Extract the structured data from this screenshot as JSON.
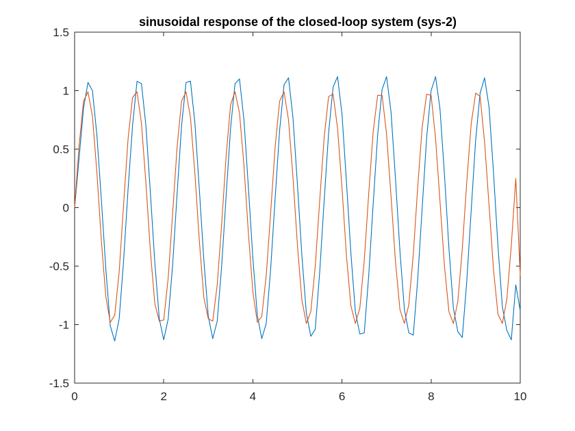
{
  "chart_data": {
    "type": "line",
    "title": "sinusoidal response of the closed-loop system (sys-2)",
    "xlabel": "",
    "ylabel": "",
    "xlim": [
      0,
      10
    ],
    "ylim": [
      -1.5,
      1.5
    ],
    "xticks": [
      0,
      2,
      4,
      6,
      8,
      10
    ],
    "yticks": [
      -1.5,
      -1,
      -0.5,
      0,
      0.5,
      1,
      1.5
    ],
    "xtick_labels": [
      "0",
      "2",
      "4",
      "6",
      "8",
      "10"
    ],
    "ytick_labels": [
      "-1.5",
      "-1",
      "-0.5",
      "0",
      "0.5",
      "1",
      "1.5"
    ],
    "grid": false,
    "legend": false,
    "series": [
      {
        "color": "#0072BD",
        "x": [
          0,
          0.1,
          0.2,
          0.3,
          0.4,
          0.5,
          0.6,
          0.7,
          0.8,
          0.9,
          1.0,
          1.1,
          1.2,
          1.3,
          1.4,
          1.5,
          1.6,
          1.7,
          1.8,
          1.9,
          2.0,
          2.1,
          2.2,
          2.3,
          2.4,
          2.5,
          2.6,
          2.7,
          2.8,
          2.9,
          3.0,
          3.1,
          3.2,
          3.3,
          3.4,
          3.5,
          3.6,
          3.7,
          3.8,
          3.9,
          4.0,
          4.1,
          4.2,
          4.3,
          4.4,
          4.5,
          4.6,
          4.7,
          4.8,
          4.9,
          5.0,
          5.1,
          5.2,
          5.3,
          5.4,
          5.5,
          5.6,
          5.7,
          5.8,
          5.9,
          6.0,
          6.1,
          6.2,
          6.3,
          6.4,
          6.5,
          6.6,
          6.7,
          6.8,
          6.9,
          7.0,
          7.1,
          7.2,
          7.3,
          7.4,
          7.5,
          7.6,
          7.7,
          7.8,
          7.9,
          8.0,
          8.1,
          8.2,
          8.3,
          8.4,
          8.5,
          8.6,
          8.7,
          8.8,
          8.9,
          9.0,
          9.1,
          9.2,
          9.3,
          9.4,
          9.5,
          9.6,
          9.7,
          9.8,
          9.9,
          10.0
        ],
        "y": [
          0,
          0.42,
          0.85,
          1.07,
          1.0,
          0.62,
          0.07,
          -0.52,
          -1.01,
          -1.14,
          -0.95,
          -0.45,
          0.16,
          0.7,
          1.08,
          1.06,
          0.7,
          0.13,
          -0.47,
          -0.95,
          -1.13,
          -0.95,
          -0.49,
          0.12,
          0.7,
          1.07,
          1.08,
          0.72,
          0.15,
          -0.45,
          -0.93,
          -1.12,
          -0.97,
          -0.5,
          0.1,
          0.68,
          1.06,
          1.1,
          0.75,
          0.17,
          -0.43,
          -0.92,
          -1.12,
          -0.99,
          -0.52,
          0.08,
          0.66,
          1.05,
          1.11,
          0.77,
          0.2,
          -0.41,
          -0.9,
          -1.1,
          -1.04,
          -0.55,
          0.06,
          0.64,
          1.03,
          1.12,
          0.8,
          0.22,
          -0.39,
          -0.89,
          -1.08,
          -1.07,
          -0.58,
          0.03,
          0.62,
          1.01,
          1.12,
          0.82,
          0.25,
          -0.37,
          -0.87,
          -1.07,
          -1.09,
          -0.61,
          0.0,
          0.6,
          1.0,
          1.12,
          0.84,
          0.28,
          -0.35,
          -0.86,
          -1.06,
          -1.11,
          -0.63,
          -0.02,
          0.58,
          0.98,
          1.11,
          0.86,
          0.3,
          -0.33,
          -0.85,
          -1.05,
          -1.13,
          -0.66,
          -0.88
        ]
      },
      {
        "color": "#D95319",
        "x": [
          0,
          0.1,
          0.2,
          0.3,
          0.4,
          0.5,
          0.6,
          0.7,
          0.8,
          0.9,
          1.0,
          1.1,
          1.2,
          1.3,
          1.4,
          1.5,
          1.6,
          1.7,
          1.8,
          1.9,
          2.0,
          2.1,
          2.2,
          2.3,
          2.4,
          2.5,
          2.6,
          2.7,
          2.8,
          2.9,
          3.0,
          3.1,
          3.2,
          3.3,
          3.4,
          3.5,
          3.6,
          3.7,
          3.8,
          3.9,
          4.0,
          4.1,
          4.2,
          4.3,
          4.4,
          4.5,
          4.6,
          4.7,
          4.8,
          4.9,
          5.0,
          5.1,
          5.2,
          5.3,
          5.4,
          5.5,
          5.6,
          5.7,
          5.8,
          5.9,
          6.0,
          6.1,
          6.2,
          6.3,
          6.4,
          6.5,
          6.6,
          6.7,
          6.8,
          6.9,
          7.0,
          7.1,
          7.2,
          7.3,
          7.4,
          7.5,
          7.6,
          7.7,
          7.8,
          7.9,
          8.0,
          8.1,
          8.2,
          8.3,
          8.4,
          8.5,
          8.6,
          8.7,
          8.8,
          8.9,
          9.0,
          9.1,
          9.2,
          9.3,
          9.4,
          9.5,
          9.6,
          9.7,
          9.8,
          9.9,
          10.0
        ],
        "y": [
          0,
          0.53,
          0.91,
          0.99,
          0.78,
          0.3,
          -0.28,
          -0.76,
          -0.98,
          -0.92,
          -0.55,
          0.03,
          0.59,
          0.94,
          0.99,
          0.72,
          0.21,
          -0.37,
          -0.82,
          -0.97,
          -0.96,
          -0.6,
          -0.05,
          0.52,
          0.91,
          0.99,
          0.77,
          0.29,
          -0.29,
          -0.77,
          -0.95,
          -0.97,
          -0.66,
          -0.14,
          0.44,
          0.88,
          0.99,
          0.81,
          0.36,
          -0.22,
          -0.72,
          -0.98,
          -0.93,
          -0.58,
          -0.04,
          0.52,
          0.91,
          0.99,
          0.75,
          0.26,
          -0.32,
          -0.79,
          -0.99,
          -0.89,
          -0.5,
          0.06,
          0.6,
          0.95,
          0.97,
          0.68,
          0.17,
          -0.41,
          -0.84,
          -0.99,
          -0.86,
          -0.45,
          0.12,
          0.65,
          0.96,
          0.96,
          0.63,
          0.1,
          -0.46,
          -0.87,
          -0.99,
          -0.83,
          -0.4,
          0.18,
          0.69,
          0.97,
          0.96,
          0.59,
          0.05,
          -0.5,
          -0.89,
          -0.99,
          -0.8,
          -0.35,
          0.22,
          0.72,
          0.98,
          0.95,
          0.56,
          0.02,
          -0.53,
          -0.91,
          -0.99,
          -0.78,
          -0.32,
          0.25,
          -0.58
        ]
      }
    ]
  }
}
